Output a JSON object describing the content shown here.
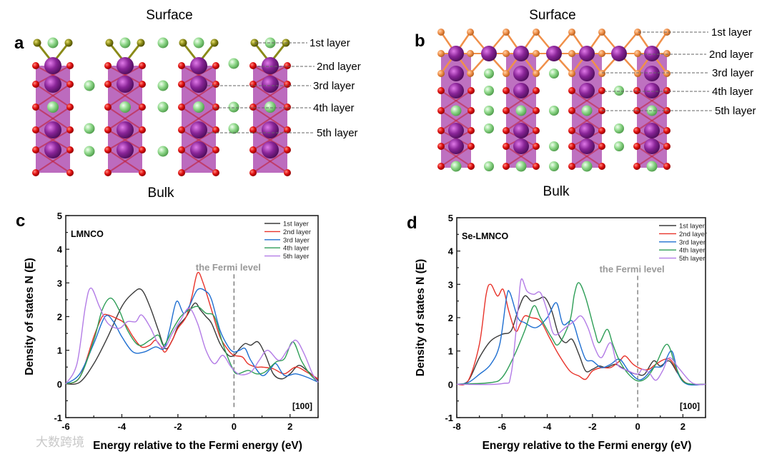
{
  "panel_a": {
    "letter": "a",
    "top_label": "Surface",
    "bottom_label": "Bulk",
    "layers": [
      "1st layer",
      "2nd layer",
      "3rd layer",
      "4th layer",
      "5th layer"
    ]
  },
  "panel_b": {
    "letter": "b",
    "top_label": "Surface",
    "bottom_label": "Bulk",
    "layers": [
      "1st layer",
      "2nd layer",
      "3rd layer",
      "4th layer",
      "5th layer"
    ]
  },
  "watermark": "大数跨境",
  "chart_data": [
    {
      "panel_letter": "c",
      "type": "line",
      "title": "LMNCO",
      "annotation": "the Fermi level",
      "direction_label": "[100]",
      "xlabel": "Energy relative to the Fermi energy (eV)",
      "ylabel": "Density of states N (E)",
      "xlim": [
        -6,
        3
      ],
      "ylim": [
        -1,
        5
      ],
      "xticks": [
        -6,
        -4,
        -2,
        0,
        2
      ],
      "yticks": [
        -1,
        0,
        1,
        2,
        3,
        4,
        5
      ],
      "fermi_x": 0,
      "legend_position": "top-right",
      "series": [
        {
          "name": "1st layer",
          "color": "#3a3a3a",
          "x": [
            -6,
            -5.5,
            -5,
            -4.5,
            -4,
            -3.6,
            -3.3,
            -3,
            -2.7,
            -2.45,
            -2.2,
            -2,
            -1.7,
            -1.4,
            -1.2,
            -1,
            -0.8,
            -0.5,
            -0.2,
            0,
            0.2,
            0.4,
            0.6,
            0.85,
            1.1,
            1.4,
            1.7,
            2,
            2.3,
            2.6,
            3
          ],
          "y": [
            0,
            0.05,
            0.6,
            1.4,
            2.3,
            2.7,
            2.8,
            2.3,
            1.6,
            1.05,
            1.3,
            1.7,
            2.0,
            2.4,
            2.2,
            2.0,
            1.8,
            1.2,
            0.85,
            0.85,
            1.05,
            1.2,
            1.15,
            1.25,
            0.9,
            0.3,
            0.15,
            0.3,
            0.55,
            0.4,
            0.1
          ]
        },
        {
          "name": "2nd layer",
          "color": "#e8332a",
          "x": [
            -6,
            -5.5,
            -5,
            -4.7,
            -4.5,
            -4.2,
            -3.9,
            -3.6,
            -3.3,
            -3,
            -2.8,
            -2.6,
            -2.45,
            -2.2,
            -2,
            -1.7,
            -1.5,
            -1.3,
            -1.1,
            -0.8,
            -0.5,
            -0.2,
            0,
            0.3,
            0.5,
            0.8,
            1,
            1.4,
            1.8,
            2.2,
            2.6,
            3
          ],
          "y": [
            0,
            0.2,
            1.4,
            2.0,
            2.05,
            1.95,
            1.8,
            1.4,
            1.1,
            1.15,
            1.3,
            1.1,
            0.95,
            1.3,
            1.65,
            2.0,
            2.6,
            3.3,
            3.0,
            2.2,
            1.4,
            1.0,
            0.85,
            0.8,
            0.6,
            0.5,
            0.5,
            0.45,
            0.3,
            0.5,
            0.35,
            0.15
          ]
        },
        {
          "name": "3rd layer",
          "color": "#1f6fd1",
          "x": [
            -6,
            -5.5,
            -5,
            -4.6,
            -4.3,
            -4,
            -3.6,
            -3.2,
            -2.8,
            -2.5,
            -2.3,
            -2.05,
            -1.8,
            -1.6,
            -1.3,
            -1,
            -0.8,
            -0.5,
            -0.2,
            0,
            0.2,
            0.4,
            0.6,
            1,
            1.3,
            1.5,
            1.8,
            2.2,
            2.6,
            3
          ],
          "y": [
            0,
            0.3,
            1.2,
            2.0,
            1.85,
            1.4,
            0.95,
            0.95,
            1.1,
            1.05,
            1.6,
            2.45,
            2.1,
            2.3,
            2.8,
            2.75,
            2.5,
            1.6,
            1.1,
            0.95,
            1.0,
            1.05,
            0.7,
            0.25,
            0.45,
            0.6,
            0.25,
            0.3,
            0.2,
            0.05
          ]
        },
        {
          "name": "4th layer",
          "color": "#2e9e57",
          "x": [
            -6,
            -5.5,
            -5,
            -4.7,
            -4.4,
            -4.1,
            -3.8,
            -3.4,
            -3,
            -2.7,
            -2.5,
            -2.2,
            -1.9,
            -1.6,
            -1.3,
            -1,
            -0.7,
            -0.4,
            -0.1,
            0.1,
            0.5,
            0.8,
            1.1,
            1.5,
            1.8,
            2.1,
            2.4,
            2.7,
            3
          ],
          "y": [
            0,
            0.2,
            1.3,
            2.2,
            2.55,
            2.2,
            1.6,
            1.15,
            1.3,
            1.45,
            1.15,
            1.6,
            2.0,
            2.2,
            2.3,
            2.1,
            2.0,
            1.2,
            0.55,
            0.3,
            0.4,
            0.3,
            0.35,
            0.65,
            0.75,
            1.25,
            0.7,
            0.3,
            0.05
          ]
        },
        {
          "name": "5th layer",
          "color": "#b37ce6",
          "x": [
            -6,
            -5.6,
            -5.3,
            -5.1,
            -4.8,
            -4.5,
            -4.1,
            -3.8,
            -3.5,
            -3.3,
            -3,
            -2.7,
            -2.45,
            -2.2,
            -1.9,
            -1.6,
            -1.3,
            -1,
            -0.7,
            -0.4,
            -0.1,
            0.2,
            0.6,
            0.9,
            1.2,
            1.6,
            1.9,
            2.2,
            2.5,
            2.8,
            3
          ],
          "y": [
            0,
            0.6,
            2.3,
            2.85,
            2.3,
            1.8,
            1.65,
            1.85,
            1.85,
            2.05,
            1.7,
            1.2,
            1.1,
            1.5,
            1.9,
            2.25,
            1.8,
            1.0,
            0.6,
            0.85,
            0.5,
            0.28,
            0.35,
            0.7,
            1.0,
            0.7,
            1.0,
            1.3,
            0.9,
            0.3,
            0.05
          ]
        }
      ]
    },
    {
      "panel_letter": "d",
      "type": "line",
      "title": "Se-LMNCO",
      "annotation": "the Fermi level",
      "direction_label": "[100]",
      "xlabel": "Energy relative to the Fermi energy (eV)",
      "ylabel": "Density of states N (E)",
      "xlim": [
        -8,
        3
      ],
      "ylim": [
        -1,
        5
      ],
      "xticks": [
        -8,
        -6,
        -4,
        -2,
        0,
        2
      ],
      "yticks": [
        -1,
        0,
        1,
        2,
        3,
        4,
        5
      ],
      "fermi_x": 0,
      "legend_position": "top-right",
      "series": [
        {
          "name": "1st layer",
          "color": "#3a3a3a",
          "x": [
            -8,
            -7.5,
            -7,
            -6.5,
            -6,
            -5.6,
            -5.3,
            -5,
            -4.7,
            -4.4,
            -4.1,
            -3.8,
            -3.5,
            -3.2,
            -2.9,
            -2.6,
            -2.3,
            -2,
            -1.7,
            -1.4,
            -1,
            -0.7,
            -0.3,
            0,
            0.3,
            0.7,
            1,
            1.4,
            1.8,
            2.2,
            3
          ],
          "y": [
            0,
            0.1,
            0.8,
            1.3,
            1.5,
            1.6,
            2.2,
            2.65,
            2.5,
            2.55,
            2.6,
            2.2,
            1.5,
            1.25,
            1.35,
            0.9,
            0.4,
            0.45,
            0.55,
            0.5,
            0.6,
            0.5,
            0.35,
            0.3,
            0.3,
            0.7,
            0.55,
            0.7,
            0.3,
            0.02,
            0
          ]
        },
        {
          "name": "2nd layer",
          "color": "#e8332a",
          "x": [
            -8,
            -7.5,
            -7,
            -6.7,
            -6.5,
            -6.2,
            -5.95,
            -5.7,
            -5.4,
            -5.2,
            -5,
            -4.7,
            -4.3,
            -3.9,
            -3.5,
            -3,
            -2.6,
            -2.3,
            -2,
            -1.6,
            -1.2,
            -0.8,
            -0.55,
            -0.2,
            0.2,
            0.5,
            0.8,
            1.2,
            1.5,
            1.9,
            2.3,
            3
          ],
          "y": [
            0,
            0.1,
            1.2,
            2.7,
            3.0,
            2.65,
            2.85,
            2.2,
            1.6,
            1.8,
            2.05,
            2.0,
            1.9,
            1.4,
            0.9,
            0.4,
            0.25,
            0.15,
            0.4,
            0.5,
            0.5,
            0.7,
            0.85,
            0.6,
            0.45,
            0.45,
            0.6,
            0.75,
            0.7,
            0.2,
            0,
            0
          ]
        },
        {
          "name": "3rd layer",
          "color": "#1f6fd1",
          "x": [
            -8,
            -7.5,
            -7,
            -6.5,
            -6.1,
            -5.8,
            -5.65,
            -5.3,
            -5,
            -4.5,
            -4,
            -3.6,
            -3.3,
            -2.9,
            -2.6,
            -2.3,
            -2,
            -1.6,
            -1.2,
            -0.8,
            -0.4,
            0,
            0.3,
            0.7,
            1.1,
            1.5,
            1.8,
            2.2,
            3
          ],
          "y": [
            0,
            0.05,
            0.3,
            0.6,
            1.2,
            2.6,
            2.75,
            2.0,
            1.85,
            1.7,
            2.0,
            2.45,
            1.8,
            1.9,
            1.3,
            0.75,
            0.7,
            0.5,
            0.6,
            0.75,
            0.4,
            0.15,
            0.2,
            0.5,
            0.55,
            1.0,
            0.3,
            0,
            0
          ]
        },
        {
          "name": "4th layer",
          "color": "#2e9e57",
          "x": [
            -8,
            -6.5,
            -6,
            -5.5,
            -5,
            -4.6,
            -4.3,
            -3.8,
            -3.5,
            -3,
            -2.8,
            -2.6,
            -2.3,
            -1.9,
            -1.7,
            -1.35,
            -1.1,
            -0.8,
            -0.4,
            0,
            0.4,
            0.8,
            1.3,
            1.7,
            2.1,
            3
          ],
          "y": [
            0,
            0.05,
            0.2,
            0.8,
            1.6,
            2.35,
            2.0,
            1.4,
            1.2,
            1.9,
            2.7,
            3.05,
            2.6,
            1.6,
            1.25,
            1.65,
            1.2,
            0.7,
            0.3,
            0.1,
            0.2,
            0.6,
            1.2,
            0.5,
            0.05,
            0
          ]
        },
        {
          "name": "5th layer",
          "color": "#b37ce6",
          "x": [
            -8,
            -6,
            -5.6,
            -5.3,
            -5.15,
            -4.9,
            -4.6,
            -4.3,
            -4,
            -3.7,
            -3.2,
            -2.8,
            -2.5,
            -2.2,
            -1.9,
            -1.6,
            -1.2,
            -0.9,
            -0.4,
            0,
            0.2,
            0.5,
            0.8,
            1.1,
            1.4,
            1.8,
            2.3,
            2.6,
            3
          ],
          "y": [
            0,
            0.02,
            0.3,
            2.2,
            3.15,
            2.8,
            2.7,
            2.75,
            2.2,
            1.5,
            1.7,
            1.9,
            2.05,
            1.7,
            1.1,
            0.8,
            1.25,
            0.6,
            0.4,
            0.3,
            0.45,
            0.35,
            0.12,
            0.4,
            0.8,
            0.5,
            0.1,
            0,
            0
          ]
        }
      ]
    }
  ],
  "colors": {
    "mn_octahedron": "#a53aa8",
    "mn_atom": "#7a1a8a",
    "oxygen": "#e01010",
    "li": "#8fd88a",
    "surface_a": "#8a8a18",
    "selenium": "#f0904a"
  }
}
